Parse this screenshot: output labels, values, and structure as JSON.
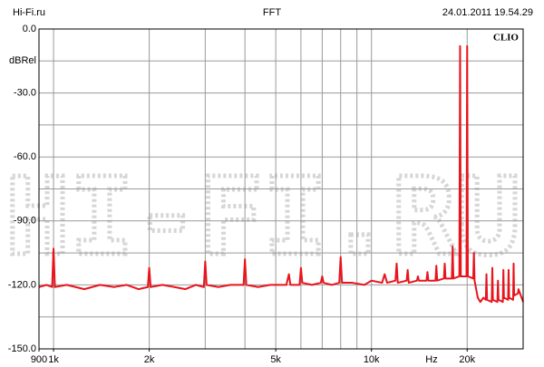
{
  "header": {
    "left": "Hi-Fi.ru",
    "center": "FFT",
    "right": "24.01.2011 19.54.29"
  },
  "chart_data": {
    "type": "line",
    "brand": "CLIO",
    "watermark": "HI-FI.RU",
    "y_label": "dBRel",
    "x_label": "Hz",
    "color": "#e8141c",
    "xscale": "log",
    "xlim": [
      900,
      30000
    ],
    "xticks": [
      {
        "value": 900,
        "label": "900"
      },
      {
        "value": 1000,
        "label": "1k"
      },
      {
        "value": 2000,
        "label": "2k"
      },
      {
        "value": 5000,
        "label": "5k"
      },
      {
        "value": 10000,
        "label": "10k"
      },
      {
        "value": 20000,
        "label": "20k"
      }
    ],
    "xgrid": [
      1000,
      2000,
      3000,
      4000,
      5000,
      6000,
      7000,
      8000,
      9000,
      10000,
      20000
    ],
    "ylim": [
      -150,
      0
    ],
    "yticks": [
      {
        "value": 0,
        "label": "0.0"
      },
      {
        "value": -30,
        "label": "-30.0"
      },
      {
        "value": -60,
        "label": "-60.0"
      },
      {
        "value": -90,
        "label": "-90.0"
      },
      {
        "value": -120,
        "label": "-120.0"
      },
      {
        "value": -150,
        "label": "-150.0"
      }
    ],
    "ygrid": [
      -15,
      -45,
      -75,
      -105,
      -135
    ],
    "grid": true,
    "x": [
      900,
      950,
      990,
      1000,
      1010,
      1100,
      1250,
      1400,
      1550,
      1700,
      1850,
      1980,
      2000,
      2020,
      2200,
      2400,
      2600,
      2800,
      2970,
      3000,
      3030,
      3300,
      3600,
      3960,
      4000,
      4040,
      4400,
      4800,
      5400,
      5500,
      5560,
      5940,
      6000,
      6060,
      6500,
      6930,
      7000,
      7070,
      7500,
      7920,
      8000,
      8080,
      8700,
      9500,
      10000,
      10800,
      11000,
      11200,
      11900,
      12000,
      12100,
      12900,
      13000,
      13100,
      13900,
      14000,
      14100,
      14900,
      15000,
      15100,
      15900,
      16000,
      16100,
      16900,
      17000,
      17100,
      17900,
      18000,
      18100,
      18900,
      19000,
      19100,
      19900,
      20000,
      20100,
      20900,
      21000,
      21100,
      21600,
      22000,
      22500,
      22900,
      23000,
      23100,
      23900,
      24000,
      24100,
      24900,
      25000,
      25100,
      25900,
      26000,
      26100,
      26900,
      27000,
      27100,
      27900,
      28000,
      28100,
      28900,
      29000,
      29500,
      30000
    ],
    "values": [
      -121,
      -120,
      -121,
      -103,
      -121,
      -120,
      -122,
      -120,
      -121,
      -120,
      -122,
      -121,
      -112,
      -121,
      -120,
      -121,
      -122,
      -120,
      -121,
      -109,
      -120,
      -121,
      -120,
      -120,
      -108,
      -120,
      -121,
      -120,
      -120,
      -115,
      -120,
      -120,
      -112,
      -119,
      -120,
      -119,
      -116,
      -119,
      -120,
      -119,
      -107,
      -119,
      -119,
      -120,
      -118,
      -119,
      -115,
      -119,
      -118,
      -110,
      -119,
      -118,
      -113,
      -119,
      -118,
      -116,
      -118,
      -118,
      -114,
      -118,
      -118,
      -111,
      -118,
      -117,
      -110,
      -117,
      -117,
      -102,
      -117,
      -116,
      -8,
      -116,
      -116,
      -8,
      -116,
      -117,
      -105,
      -118,
      -126,
      -128,
      -126,
      -127,
      -115,
      -127,
      -128,
      -112,
      -127,
      -128,
      -118,
      -127,
      -128,
      -113,
      -126,
      -127,
      -113,
      -126,
      -127,
      -110,
      -125,
      -124,
      -122,
      -125,
      -128
    ]
  }
}
